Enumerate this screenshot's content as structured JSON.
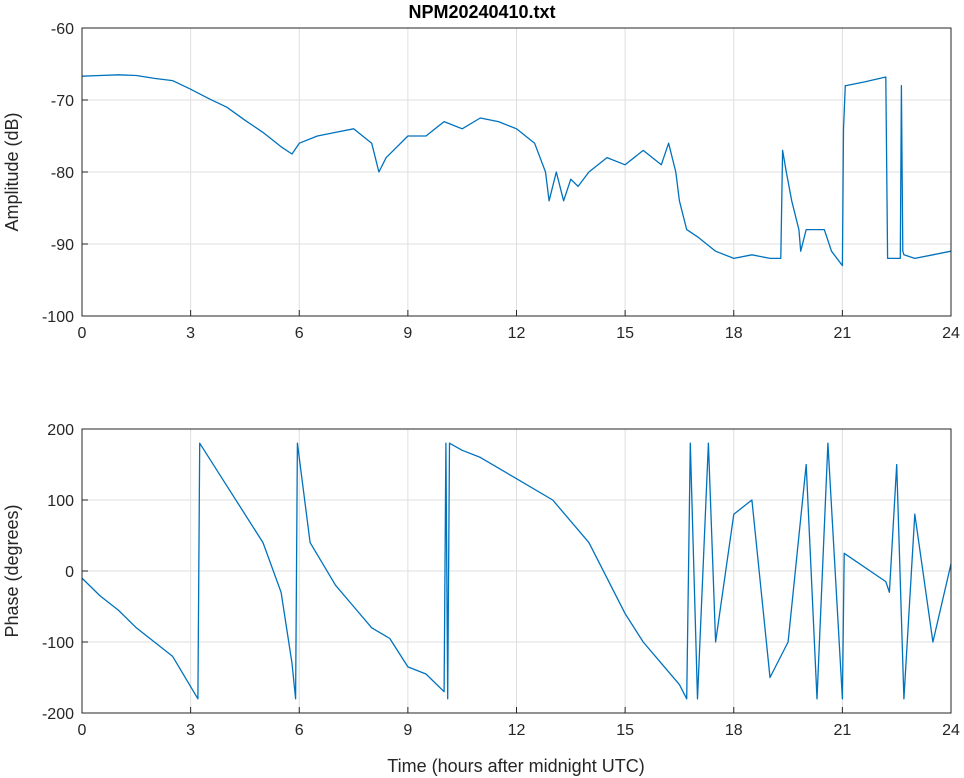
{
  "colors": {
    "series": "#0072bd"
  },
  "chart_data": [
    {
      "type": "line",
      "title": "NPM20240410.txt",
      "xlabel": "",
      "ylabel": "Amplitude (dB)",
      "xlim": [
        0,
        24
      ],
      "ylim": [
        -100,
        -60
      ],
      "xticks": [
        "0",
        "3",
        "6",
        "9",
        "12",
        "15",
        "18",
        "21",
        "24"
      ],
      "yticks": [
        "-60",
        "-70",
        "-80",
        "-90",
        "-100"
      ],
      "grid": true,
      "x": [
        0,
        0.5,
        1,
        1.5,
        2,
        2.5,
        3,
        3.5,
        4,
        4.5,
        5,
        5.5,
        5.8,
        6,
        6.5,
        7,
        7.5,
        8,
        8.2,
        8.4,
        8.6,
        9,
        9.5,
        10,
        10.5,
        11,
        11.5,
        12,
        12.5,
        12.8,
        12.9,
        13.1,
        13.3,
        13.5,
        13.7,
        14,
        14.5,
        15,
        15.5,
        16,
        16.2,
        16.4,
        16.5,
        16.7,
        17,
        17.5,
        18,
        18.5,
        19,
        19.3,
        19.35,
        19.45,
        19.6,
        19.8,
        19.85,
        20,
        20.5,
        20.7,
        21,
        21.03,
        21.08,
        21.1,
        21.6,
        22.2,
        22.25,
        22.6,
        22.63,
        22.67,
        22.7,
        23,
        23.5,
        24
      ],
      "values": [
        -66.7,
        -66.6,
        -66.5,
        -66.6,
        -67,
        -67.3,
        -68.5,
        -69.8,
        -71,
        -72.8,
        -74.5,
        -76.5,
        -77.5,
        -76,
        -75,
        -74.5,
        -74,
        -76,
        -80,
        -78,
        -77,
        -75,
        -75,
        -73,
        -74,
        -72.5,
        -73,
        -74,
        -76,
        -80,
        -84,
        -80,
        -84,
        -81,
        -82,
        -80,
        -78,
        -79,
        -77,
        -79,
        -76,
        -80,
        -84,
        -88,
        -89,
        -91,
        -92,
        -91.5,
        -92,
        -92,
        -77,
        -80,
        -84,
        -88,
        -91,
        -88,
        -88,
        -91,
        -93,
        -74,
        -68,
        -68,
        -67.5,
        -66.8,
        -92,
        -92,
        -68,
        -91,
        -91.5,
        -92,
        -91.5,
        -91
      ]
    },
    {
      "type": "line",
      "title": "",
      "xlabel": "Time (hours after midnight UTC)",
      "ylabel": "Phase (degrees)",
      "xlim": [
        0,
        24
      ],
      "ylim": [
        -200,
        200
      ],
      "xticks": [
        "0",
        "3",
        "6",
        "9",
        "12",
        "15",
        "18",
        "21",
        "24"
      ],
      "yticks": [
        "200",
        "100",
        "0",
        "-100",
        "-200"
      ],
      "grid": true,
      "x": [
        0,
        0.5,
        1,
        1.5,
        2,
        2.5,
        3.2,
        3.25,
        4,
        5,
        5.5,
        5.8,
        5.9,
        5.95,
        6.3,
        7,
        7.5,
        8,
        8.5,
        9,
        9.5,
        10,
        10.05,
        10.1,
        10.15,
        10.5,
        11,
        12,
        13,
        14,
        15,
        15.5,
        16,
        16.5,
        16.7,
        16.8,
        17,
        17.3,
        17.5,
        18,
        18.5,
        19,
        19.5,
        20,
        20.3,
        20.6,
        21,
        21.05,
        22.2,
        22.3,
        22.5,
        22.7,
        23,
        23.5,
        24
      ],
      "values": [
        -10,
        -35,
        -55,
        -80,
        -100,
        -120,
        -180,
        180,
        120,
        40,
        -30,
        -130,
        -180,
        180,
        40,
        -20,
        -50,
        -80,
        -95,
        -135,
        -145,
        -170,
        180,
        -180,
        180,
        170,
        160,
        130,
        100,
        40,
        -60,
        -100,
        -130,
        -160,
        -180,
        180,
        -180,
        180,
        -100,
        80,
        100,
        -150,
        -100,
        150,
        -180,
        180,
        -180,
        25,
        -15,
        -30,
        150,
        -180,
        80,
        -100,
        10
      ]
    }
  ]
}
